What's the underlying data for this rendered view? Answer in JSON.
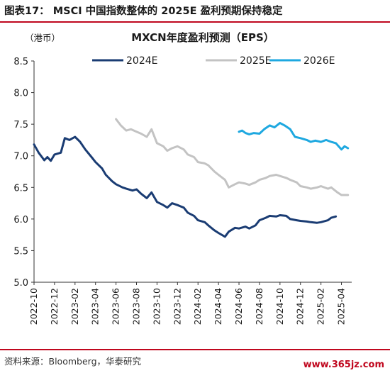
{
  "figure": {
    "title": "图表17： MSCI 中国指数整体的 2025E 盈利预期保持稳定",
    "source": "资料来源：Bloomberg，华泰研究",
    "watermark": "www.365jz.com"
  },
  "chart_data": {
    "type": "line",
    "title": "MXCN年度盈利预测（EPS）",
    "unit_label": "（港币）",
    "ylim": [
      5.0,
      8.5
    ],
    "yticks": [
      "5.0",
      "5.5",
      "6.0",
      "6.5",
      "7.0",
      "7.5",
      "8.0",
      "8.5"
    ],
    "xlim": [
      "2022-10",
      "2025-05"
    ],
    "xticks": [
      "2022-10",
      "2022-12",
      "2023-02",
      "2023-04",
      "2023-06",
      "2023-08",
      "2023-10",
      "2023-12",
      "2024-02",
      "2024-04",
      "2024-06",
      "2024-08",
      "2024-10",
      "2024-12",
      "2025-02",
      "2025-04"
    ],
    "grid": false,
    "legend_position": "top",
    "series": [
      {
        "name": "2024E",
        "color": "#1a3c73",
        "points": [
          [
            "2022-10",
            7.18
          ],
          [
            "2022-10-15",
            7.05
          ],
          [
            "2022-11",
            6.93
          ],
          [
            "2022-11-10",
            6.98
          ],
          [
            "2022-11-20",
            6.92
          ],
          [
            "2022-12",
            7.02
          ],
          [
            "2022-12-20",
            7.05
          ],
          [
            "2023-01",
            7.28
          ],
          [
            "2023-01-15",
            7.25
          ],
          [
            "2023-02",
            7.3
          ],
          [
            "2023-02-15",
            7.22
          ],
          [
            "2023-03",
            7.1
          ],
          [
            "2023-03-20",
            6.98
          ],
          [
            "2023-04",
            6.9
          ],
          [
            "2023-04-20",
            6.8
          ],
          [
            "2023-05",
            6.7
          ],
          [
            "2023-05-20",
            6.6
          ],
          [
            "2023-06",
            6.55
          ],
          [
            "2023-06-20",
            6.5
          ],
          [
            "2023-07",
            6.48
          ],
          [
            "2023-07-20",
            6.45
          ],
          [
            "2023-08",
            6.47
          ],
          [
            "2023-08-15",
            6.4
          ],
          [
            "2023-09",
            6.33
          ],
          [
            "2023-09-15",
            6.42
          ],
          [
            "2023-10",
            6.27
          ],
          [
            "2023-10-20",
            6.22
          ],
          [
            "2023-11",
            6.18
          ],
          [
            "2023-11-15",
            6.25
          ],
          [
            "2023-12",
            6.22
          ],
          [
            "2023-12-20",
            6.18
          ],
          [
            "2024-01",
            6.1
          ],
          [
            "2024-01-20",
            6.05
          ],
          [
            "2024-02",
            5.98
          ],
          [
            "2024-02-20",
            5.95
          ],
          [
            "2024-03",
            5.9
          ],
          [
            "2024-03-20",
            5.82
          ],
          [
            "2024-04",
            5.78
          ],
          [
            "2024-04-20",
            5.72
          ],
          [
            "2024-05",
            5.8
          ],
          [
            "2024-05-20",
            5.86
          ],
          [
            "2024-06",
            5.85
          ],
          [
            "2024-06-20",
            5.88
          ],
          [
            "2024-07",
            5.85
          ],
          [
            "2024-07-20",
            5.9
          ],
          [
            "2024-08",
            5.98
          ],
          [
            "2024-08-20",
            6.02
          ],
          [
            "2024-09",
            6.05
          ],
          [
            "2024-09-20",
            6.04
          ],
          [
            "2024-10",
            6.06
          ],
          [
            "2024-10-20",
            6.05
          ],
          [
            "2024-11",
            6.0
          ],
          [
            "2024-11-20",
            5.98
          ],
          [
            "2024-12",
            5.97
          ],
          [
            "2024-12-20",
            5.96
          ],
          [
            "2025-01",
            5.95
          ],
          [
            "2025-01-20",
            5.94
          ],
          [
            "2025-02",
            5.95
          ],
          [
            "2025-02-20",
            5.98
          ],
          [
            "2025-03",
            6.02
          ],
          [
            "2025-03-15",
            6.04
          ]
        ]
      },
      {
        "name": "2025E",
        "color": "#c3c3c3",
        "points": [
          [
            "2023-06",
            7.58
          ],
          [
            "2023-06-15",
            7.48
          ],
          [
            "2023-07",
            7.4
          ],
          [
            "2023-07-15",
            7.42
          ],
          [
            "2023-08",
            7.38
          ],
          [
            "2023-08-15",
            7.35
          ],
          [
            "2023-09",
            7.3
          ],
          [
            "2023-09-15",
            7.42
          ],
          [
            "2023-10",
            7.2
          ],
          [
            "2023-10-20",
            7.15
          ],
          [
            "2023-11",
            7.08
          ],
          [
            "2023-11-15",
            7.12
          ],
          [
            "2023-12",
            7.15
          ],
          [
            "2023-12-20",
            7.1
          ],
          [
            "2024-01",
            7.02
          ],
          [
            "2024-01-20",
            6.98
          ],
          [
            "2024-02",
            6.9
          ],
          [
            "2024-02-20",
            6.88
          ],
          [
            "2024-03",
            6.85
          ],
          [
            "2024-03-20",
            6.75
          ],
          [
            "2024-04",
            6.7
          ],
          [
            "2024-04-20",
            6.62
          ],
          [
            "2024-05",
            6.5
          ],
          [
            "2024-05-20",
            6.55
          ],
          [
            "2024-06",
            6.58
          ],
          [
            "2024-06-20",
            6.56
          ],
          [
            "2024-07",
            6.54
          ],
          [
            "2024-07-20",
            6.58
          ],
          [
            "2024-08",
            6.62
          ],
          [
            "2024-08-20",
            6.65
          ],
          [
            "2024-09",
            6.68
          ],
          [
            "2024-09-20",
            6.7
          ],
          [
            "2024-10",
            6.68
          ],
          [
            "2024-10-20",
            6.65
          ],
          [
            "2024-11",
            6.62
          ],
          [
            "2024-11-20",
            6.58
          ],
          [
            "2024-12",
            6.52
          ],
          [
            "2024-12-20",
            6.5
          ],
          [
            "2025-01",
            6.48
          ],
          [
            "2025-01-20",
            6.5
          ],
          [
            "2025-02",
            6.52
          ],
          [
            "2025-02-20",
            6.48
          ],
          [
            "2025-03",
            6.5
          ],
          [
            "2025-03-20",
            6.42
          ],
          [
            "2025-04",
            6.38
          ],
          [
            "2025-04-20",
            6.38
          ]
        ]
      },
      {
        "name": "2026E",
        "color": "#1ea8e0",
        "points": [
          [
            "2024-06",
            7.38
          ],
          [
            "2024-06-10",
            7.4
          ],
          [
            "2024-06-20",
            7.36
          ],
          [
            "2024-07",
            7.34
          ],
          [
            "2024-07-15",
            7.36
          ],
          [
            "2024-08",
            7.35
          ],
          [
            "2024-08-15",
            7.42
          ],
          [
            "2024-09",
            7.48
          ],
          [
            "2024-09-15",
            7.45
          ],
          [
            "2024-10",
            7.52
          ],
          [
            "2024-10-15",
            7.48
          ],
          [
            "2024-11",
            7.42
          ],
          [
            "2024-11-15",
            7.3
          ],
          [
            "2024-12",
            7.28
          ],
          [
            "2024-12-20",
            7.25
          ],
          [
            "2025-01",
            7.22
          ],
          [
            "2025-01-15",
            7.24
          ],
          [
            "2025-02",
            7.22
          ],
          [
            "2025-02-15",
            7.25
          ],
          [
            "2025-03",
            7.22
          ],
          [
            "2025-03-15",
            7.2
          ],
          [
            "2025-04",
            7.1
          ],
          [
            "2025-04-10",
            7.15
          ],
          [
            "2025-04-20",
            7.12
          ]
        ]
      }
    ]
  }
}
